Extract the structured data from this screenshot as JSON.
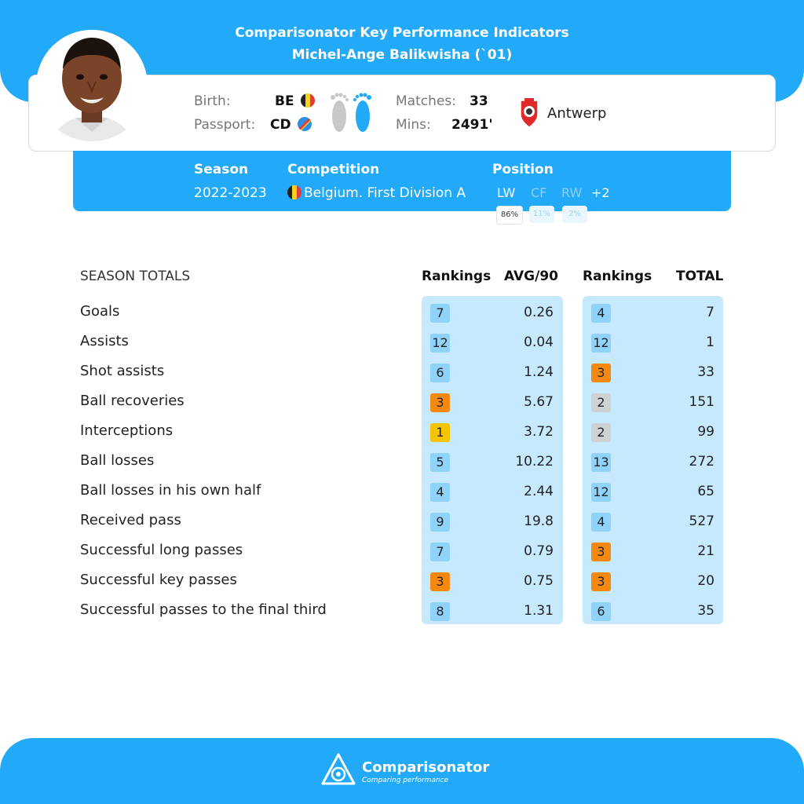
{
  "header": {
    "title": "Comparisonator Key Performance Indicators",
    "subtitle": "Michel-Ange Balikwisha (`01)"
  },
  "player": {
    "birth_label": "Birth:",
    "birth_value": "BE",
    "passport_label": "Passport:",
    "passport_value": "CD",
    "matches_label": "Matches:",
    "matches_value": "33",
    "mins_label": "Mins:",
    "mins_value": "2491'",
    "team": "Antwerp"
  },
  "season_info": {
    "season_label": "Season",
    "season_value": "2022-2023",
    "competition_label": "Competition",
    "competition_value": "Belgium. First Division A",
    "position_label": "Position",
    "positions": [
      {
        "code": "LW",
        "pct": "86%"
      },
      {
        "code": "CF",
        "pct": "11%"
      },
      {
        "code": "RW",
        "pct": "2%"
      }
    ],
    "extra_positions": "+2"
  },
  "stats": {
    "section_label": "SEASON TOTALS",
    "col_rankings_avg": "Rankings",
    "col_avg": "AVG/90",
    "col_rankings_total": "Rankings",
    "col_total": "TOTAL",
    "rows": [
      {
        "label": "Goals",
        "avg_rank": "7",
        "avg": "0.26",
        "total_rank": "4",
        "total": "7",
        "avg_rank_color": "#8fd3fb",
        "total_rank_color": "#8fd3fb"
      },
      {
        "label": "Assists",
        "avg_rank": "12",
        "avg": "0.04",
        "total_rank": "12",
        "total": "1",
        "avg_rank_color": "#8fd3fb",
        "total_rank_color": "#8fd3fb"
      },
      {
        "label": "Shot assists",
        "avg_rank": "6",
        "avg": "1.24",
        "total_rank": "3",
        "total": "33",
        "avg_rank_color": "#8fd3fb",
        "total_rank_color": "#f5890f"
      },
      {
        "label": "Ball recoveries",
        "avg_rank": "3",
        "avg": "5.67",
        "total_rank": "2",
        "total": "151",
        "avg_rank_color": "#f5890f",
        "total_rank_color": "#cfd2d4"
      },
      {
        "label": "Interceptions",
        "avg_rank": "1",
        "avg": "3.72",
        "total_rank": "2",
        "total": "99",
        "avg_rank_color": "#f6c500",
        "total_rank_color": "#cfd2d4"
      },
      {
        "label": "Ball losses",
        "avg_rank": "5",
        "avg": "10.22",
        "total_rank": "13",
        "total": "272",
        "avg_rank_color": "#8fd3fb",
        "total_rank_color": "#8fd3fb"
      },
      {
        "label": "Ball losses in his own half",
        "avg_rank": "4",
        "avg": "2.44",
        "total_rank": "12",
        "total": "65",
        "avg_rank_color": "#8fd3fb",
        "total_rank_color": "#8fd3fb"
      },
      {
        "label": "Received pass",
        "avg_rank": "9",
        "avg": "19.8",
        "total_rank": "4",
        "total": "527",
        "avg_rank_color": "#8fd3fb",
        "total_rank_color": "#8fd3fb"
      },
      {
        "label": "Successful long passes",
        "avg_rank": "7",
        "avg": "0.79",
        "total_rank": "3",
        "total": "21",
        "avg_rank_color": "#8fd3fb",
        "total_rank_color": "#f5890f"
      },
      {
        "label": "Successful key passes",
        "avg_rank": "3",
        "avg": "0.75",
        "total_rank": "3",
        "total": "20",
        "avg_rank_color": "#f5890f",
        "total_rank_color": "#f5890f"
      },
      {
        "label": "Successful passes to the final third",
        "avg_rank": "8",
        "avg": "1.31",
        "total_rank": "6",
        "total": "35",
        "avg_rank_color": "#8fd3fb",
        "total_rank_color": "#8fd3fb"
      }
    ]
  },
  "footer": {
    "brand": "Comparisonator",
    "tagline": "Comparing performance"
  }
}
